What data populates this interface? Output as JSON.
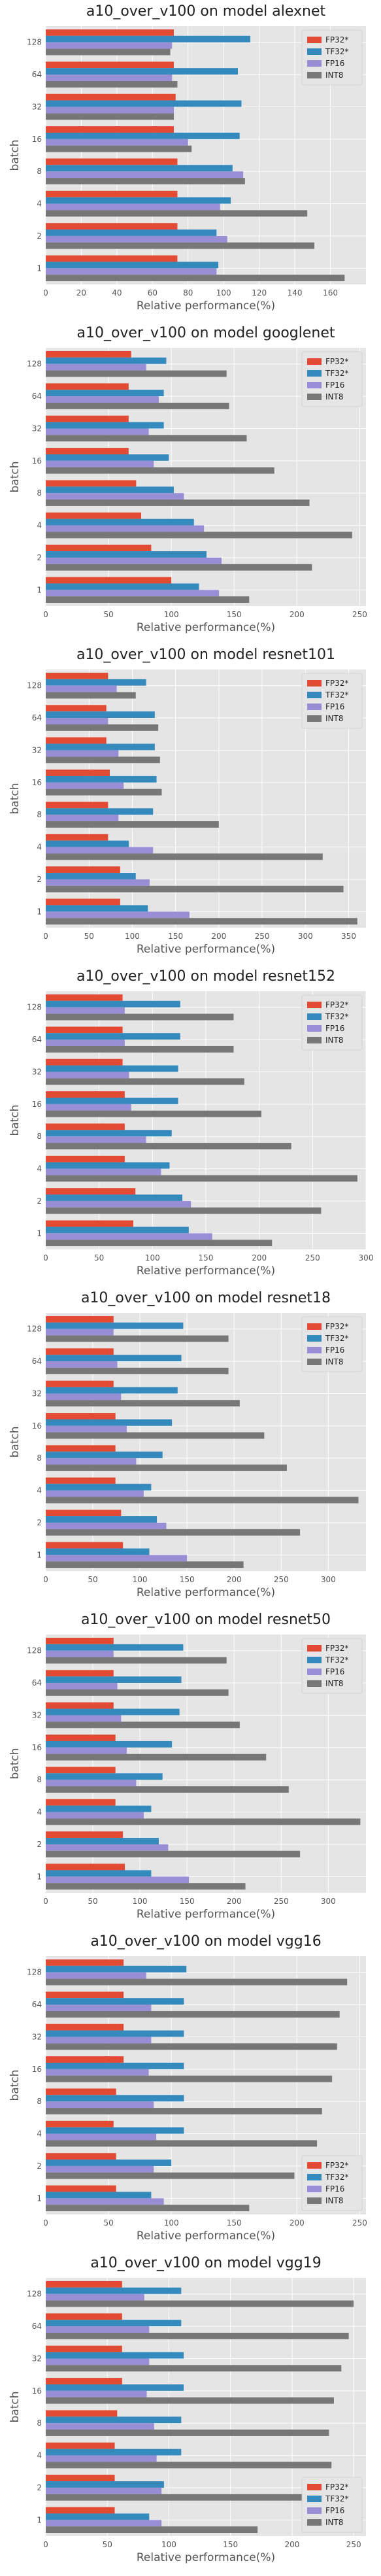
{
  "colors": {
    "FP32*": "#E24A33",
    "TF32*": "#348ABD",
    "FP16": "#988ED5",
    "INT8": "#777777",
    "plot_background": "#E5E5E5",
    "grid": "#ffffff"
  },
  "chart_data": [
    {
      "type": "bar",
      "orientation": "horizontal",
      "title": "a10_over_v100 on model alexnet",
      "xlabel": "Relative performance(%)",
      "ylabel": "batch",
      "categories": [
        "1",
        "2",
        "4",
        "8",
        "16",
        "32",
        "64",
        "128"
      ],
      "xlim": [
        0,
        180
      ],
      "xticks": [
        0,
        20,
        40,
        60,
        80,
        100,
        120,
        140,
        160
      ],
      "legend": "top-right",
      "grid": true,
      "series": [
        {
          "name": "FP32*",
          "values": [
            74,
            74,
            74,
            74,
            72,
            73,
            72,
            72
          ]
        },
        {
          "name": "TF32*",
          "values": [
            97,
            96,
            104,
            105,
            109,
            110,
            108,
            115
          ]
        },
        {
          "name": "FP16",
          "values": [
            96,
            102,
            98,
            111,
            80,
            72,
            71,
            71
          ]
        },
        {
          "name": "INT8",
          "values": [
            168,
            151,
            147,
            112,
            82,
            72,
            74,
            70
          ]
        }
      ]
    },
    {
      "type": "bar",
      "orientation": "horizontal",
      "title": "a10_over_v100 on model googlenet",
      "xlabel": "Relative performance(%)",
      "ylabel": "batch",
      "categories": [
        "1",
        "2",
        "4",
        "8",
        "16",
        "32",
        "64",
        "128"
      ],
      "xlim": [
        0,
        255
      ],
      "xticks": [
        0,
        50,
        100,
        150,
        200,
        250
      ],
      "legend": "top-right",
      "grid": true,
      "series": [
        {
          "name": "FP32*",
          "values": [
            100,
            84,
            76,
            72,
            66,
            66,
            66,
            68
          ]
        },
        {
          "name": "TF32*",
          "values": [
            122,
            128,
            118,
            102,
            98,
            94,
            94,
            96
          ]
        },
        {
          "name": "FP16",
          "values": [
            138,
            140,
            126,
            110,
            86,
            82,
            90,
            80
          ]
        },
        {
          "name": "INT8",
          "values": [
            162,
            212,
            244,
            210,
            182,
            160,
            146,
            144
          ]
        }
      ]
    },
    {
      "type": "bar",
      "orientation": "horizontal",
      "title": "a10_over_v100 on model resnet101",
      "xlabel": "Relative performance(%)",
      "ylabel": "batch",
      "categories": [
        "1",
        "2",
        "4",
        "8",
        "16",
        "32",
        "64",
        "128"
      ],
      "xlim": [
        0,
        370
      ],
      "xticks": [
        0,
        50,
        100,
        150,
        200,
        250,
        300,
        350
      ],
      "legend": "top-right",
      "grid": true,
      "series": [
        {
          "name": "FP32*",
          "values": [
            86,
            86,
            72,
            72,
            74,
            70,
            70,
            72
          ]
        },
        {
          "name": "TF32*",
          "values": [
            118,
            104,
            96,
            124,
            128,
            126,
            126,
            116
          ]
        },
        {
          "name": "FP16",
          "values": [
            166,
            120,
            124,
            84,
            90,
            84,
            72,
            82
          ]
        },
        {
          "name": "INT8",
          "values": [
            360,
            344,
            320,
            200,
            134,
            132,
            130,
            104
          ]
        }
      ]
    },
    {
      "type": "bar",
      "orientation": "horizontal",
      "title": "a10_over_v100 on model resnet152",
      "xlabel": "Relative performance(%)",
      "ylabel": "batch",
      "categories": [
        "1",
        "2",
        "4",
        "8",
        "16",
        "32",
        "64",
        "128"
      ],
      "xlim": [
        0,
        300
      ],
      "xticks": [
        0,
        50,
        100,
        150,
        200,
        250,
        300
      ],
      "legend": "top-right",
      "grid": true,
      "series": [
        {
          "name": "FP32*",
          "values": [
            82,
            84,
            74,
            74,
            74,
            72,
            72,
            72
          ]
        },
        {
          "name": "TF32*",
          "values": [
            134,
            128,
            116,
            118,
            124,
            124,
            126,
            126
          ]
        },
        {
          "name": "FP16",
          "values": [
            156,
            136,
            108,
            94,
            80,
            78,
            74,
            74
          ]
        },
        {
          "name": "INT8",
          "values": [
            212,
            258,
            292,
            230,
            202,
            186,
            176,
            176
          ]
        }
      ]
    },
    {
      "type": "bar",
      "orientation": "horizontal",
      "title": "a10_over_v100 on model resnet18",
      "xlabel": "Relative performance(%)",
      "ylabel": "batch",
      "categories": [
        "1",
        "2",
        "4",
        "8",
        "16",
        "32",
        "64",
        "128"
      ],
      "xlim": [
        0,
        340
      ],
      "xticks": [
        0,
        50,
        100,
        150,
        200,
        250,
        300
      ],
      "legend": "top-right",
      "grid": true,
      "series": [
        {
          "name": "FP32*",
          "values": [
            82,
            80,
            74,
            74,
            74,
            72,
            72,
            72
          ]
        },
        {
          "name": "TF32*",
          "values": [
            110,
            118,
            112,
            124,
            134,
            140,
            144,
            146
          ]
        },
        {
          "name": "FP16",
          "values": [
            150,
            128,
            104,
            96,
            86,
            80,
            76,
            72
          ]
        },
        {
          "name": "INT8",
          "values": [
            210,
            270,
            332,
            256,
            232,
            206,
            194,
            194
          ]
        }
      ]
    },
    {
      "type": "bar",
      "orientation": "horizontal",
      "title": "a10_over_v100 on model resnet50",
      "xlabel": "Relative performance(%)",
      "ylabel": "batch",
      "categories": [
        "1",
        "2",
        "4",
        "8",
        "16",
        "32",
        "64",
        "128"
      ],
      "xlim": [
        0,
        340
      ],
      "xticks": [
        0,
        50,
        100,
        150,
        200,
        250,
        300
      ],
      "legend": "top-right",
      "grid": true,
      "series": [
        {
          "name": "FP32*",
          "values": [
            84,
            82,
            74,
            74,
            74,
            72,
            72,
            72
          ]
        },
        {
          "name": "TF32*",
          "values": [
            112,
            120,
            112,
            124,
            134,
            142,
            144,
            146
          ]
        },
        {
          "name": "FP16",
          "values": [
            152,
            130,
            104,
            96,
            86,
            80,
            76,
            72
          ]
        },
        {
          "name": "INT8",
          "values": [
            212,
            270,
            334,
            258,
            234,
            206,
            194,
            192
          ]
        }
      ]
    },
    {
      "type": "bar",
      "orientation": "horizontal",
      "title": "a10_over_v100 on model vgg16",
      "xlabel": "Relative performance(%)",
      "ylabel": "batch",
      "categories": [
        "1",
        "2",
        "4",
        "8",
        "16",
        "32",
        "64",
        "128"
      ],
      "xlim": [
        0,
        255
      ],
      "xticks": [
        0,
        50,
        100,
        150,
        200,
        250
      ],
      "legend": "bottom-right",
      "grid": true,
      "series": [
        {
          "name": "FP32*",
          "values": [
            56,
            56,
            54,
            56,
            62,
            62,
            62,
            62
          ]
        },
        {
          "name": "TF32*",
          "values": [
            84,
            100,
            110,
            110,
            110,
            110,
            110,
            112
          ]
        },
        {
          "name": "FP16",
          "values": [
            94,
            86,
            88,
            86,
            82,
            84,
            84,
            80
          ]
        },
        {
          "name": "INT8",
          "values": [
            162,
            198,
            216,
            220,
            228,
            232,
            234,
            240
          ]
        }
      ]
    },
    {
      "type": "bar",
      "orientation": "horizontal",
      "title": "a10_over_v100 on model vgg19",
      "xlabel": "Relative performance(%)",
      "ylabel": "batch",
      "categories": [
        "1",
        "2",
        "4",
        "8",
        "16",
        "32",
        "64",
        "128"
      ],
      "xlim": [
        0,
        260
      ],
      "xticks": [
        0,
        50,
        100,
        150,
        200,
        250
      ],
      "legend": "bottom-right",
      "grid": true,
      "series": [
        {
          "name": "FP32*",
          "values": [
            56,
            56,
            56,
            58,
            62,
            62,
            62,
            62
          ]
        },
        {
          "name": "TF32*",
          "values": [
            84,
            96,
            110,
            110,
            112,
            112,
            110,
            110
          ]
        },
        {
          "name": "FP16",
          "values": [
            94,
            94,
            90,
            88,
            82,
            84,
            84,
            80
          ]
        },
        {
          "name": "INT8",
          "values": [
            172,
            214,
            232,
            230,
            234,
            240,
            246,
            250
          ]
        }
      ]
    }
  ]
}
